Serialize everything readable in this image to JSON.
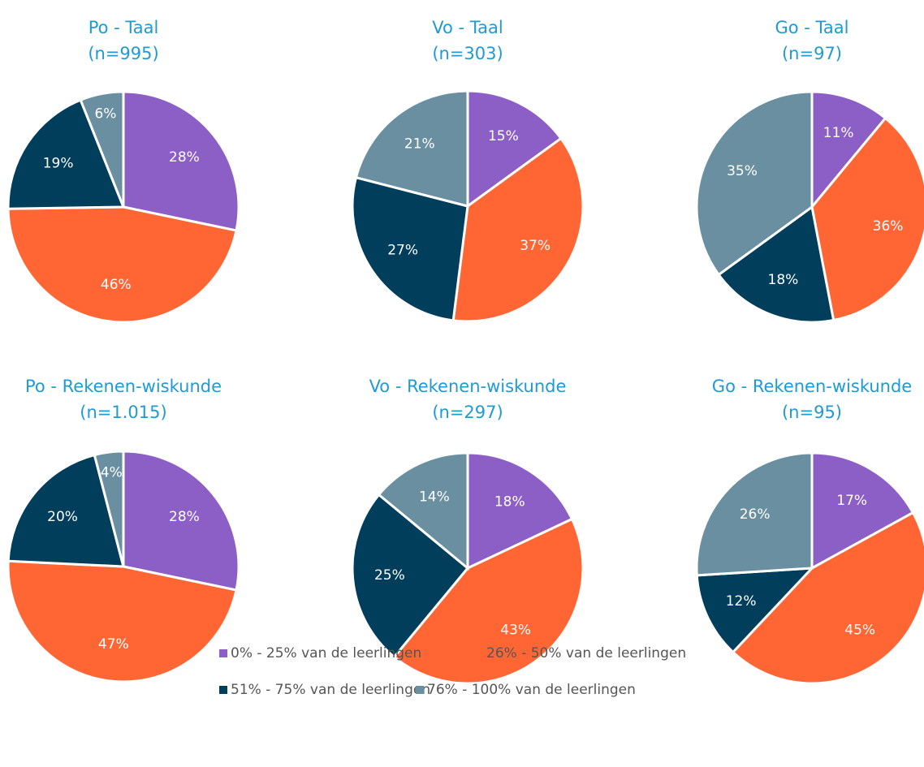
{
  "chart_data": [
    {
      "type": "pie",
      "title": "Po - Taal",
      "subtitle": "(n=995)",
      "values": [
        28,
        46,
        19,
        6
      ],
      "value_labels": [
        "28%",
        "46%",
        "19%",
        "6%"
      ]
    },
    {
      "type": "pie",
      "title": "Vo - Taal",
      "subtitle": "(n=303)",
      "values": [
        15,
        37,
        27,
        21
      ],
      "value_labels": [
        "15%",
        "37%",
        "27%",
        "21%"
      ]
    },
    {
      "type": "pie",
      "title": "Go - Taal",
      "subtitle": "(n=97)",
      "values": [
        11,
        36,
        18,
        35
      ],
      "value_labels": [
        "11%",
        "36%",
        "18%",
        "35%"
      ]
    },
    {
      "type": "pie",
      "title": "Po - Rekenen-wiskunde",
      "subtitle": "(n=1.015)",
      "values": [
        28,
        47,
        20,
        4
      ],
      "value_labels": [
        "28%",
        "47%",
        "20%",
        "4%"
      ]
    },
    {
      "type": "pie",
      "title": "Vo - Rekenen-wiskunde",
      "subtitle": "(n=297)",
      "values": [
        18,
        43,
        25,
        14
      ],
      "value_labels": [
        "18%",
        "43%",
        "25%",
        "14%"
      ]
    },
    {
      "type": "pie",
      "title": "Go - Rekenen-wiskunde",
      "subtitle": "(n=95)",
      "values": [
        17,
        45,
        12,
        26
      ],
      "value_labels": [
        "17%",
        "45%",
        "12%",
        "26%"
      ]
    }
  ],
  "legend": {
    "labels": [
      "0% - 25% van de leerlingen",
      "26% - 50% van de leerlingen",
      "51% - 75% van de leerlingen",
      "76% - 100% van de leerlingen"
    ],
    "colors": [
      "#8c5fc6",
      "#ff6634",
      "#003e5c",
      "#6a8fa1"
    ]
  }
}
